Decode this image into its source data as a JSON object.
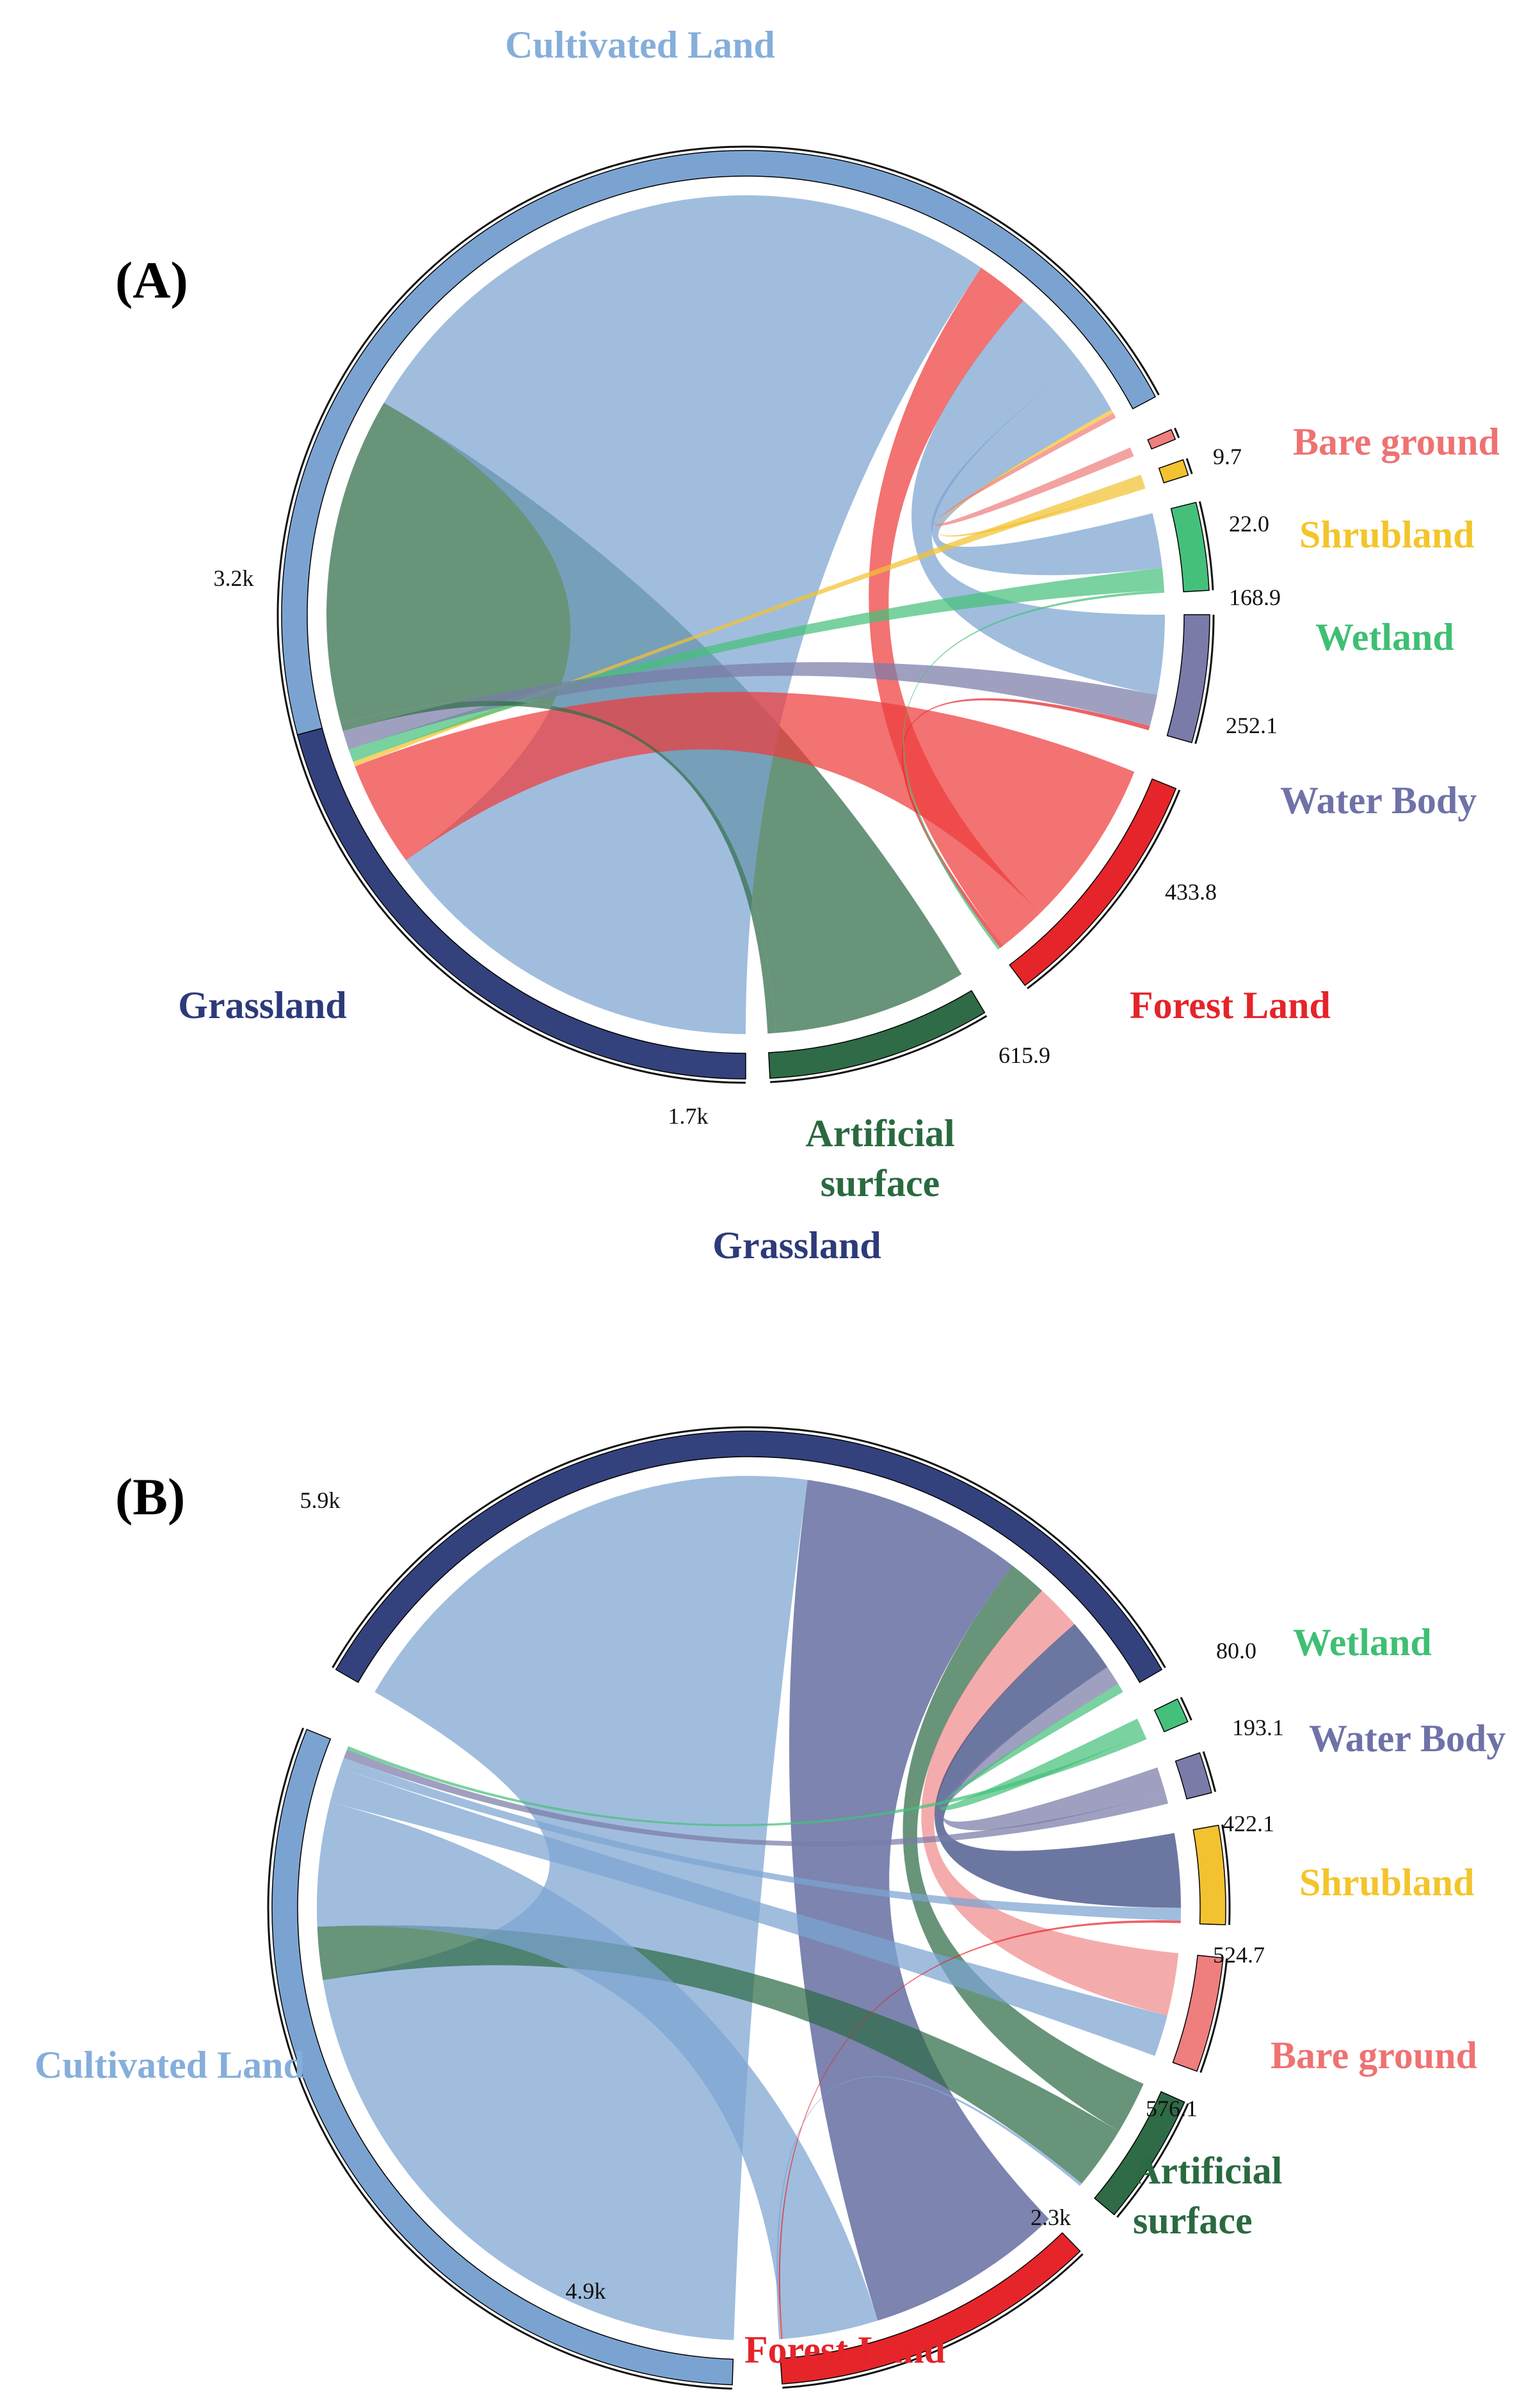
{
  "chart_data": [
    {
      "type": "chord",
      "panel_label": "(A)",
      "nodes": [
        {
          "id": "cultivated",
          "name": "Cultivated Land",
          "total": 3200,
          "total_label": "3.2k",
          "color": "#7ba3d1",
          "label_color": "#86aedb"
        },
        {
          "id": "bare",
          "name": "Bare ground",
          "total": 9.7,
          "total_label": "9.7",
          "color": "#ef7e7e",
          "label_color": "#ef7272"
        },
        {
          "id": "shrub",
          "name": "Shrubland",
          "total": 22.0,
          "total_label": "22.0",
          "color": "#f2c230",
          "label_color": "#f3c52b"
        },
        {
          "id": "wetland",
          "name": "Wetland",
          "total": 168.9,
          "total_label": "168.9",
          "color": "#45c07a",
          "label_color": "#3fbf73"
        },
        {
          "id": "water",
          "name": "Water Body",
          "total": 252.1,
          "total_label": "252.1",
          "color": "#7a7ba8",
          "label_color": "#6f72a8"
        },
        {
          "id": "forest",
          "name": "Forest Land",
          "total": 433.8,
          "total_label": "433.8",
          "color": "#e5252a",
          "label_color": "#e4242a"
        },
        {
          "id": "artificial",
          "name": "Artificial surface",
          "name_lines": [
            "Artificial",
            "surface"
          ],
          "total": 615.9,
          "total_label": "615.9",
          "color": "#2e6b46",
          "label_color": "#2a6a40"
        },
        {
          "id": "grassland",
          "name": "Grassland",
          "total": 1700,
          "total_label": "1.7k",
          "color": "#33427d",
          "label_color": "#2d3a7a"
        }
      ],
      "flows": [
        {
          "source": "cultivated",
          "target": "artificial",
          "value": 590,
          "color": "#2e6b46"
        },
        {
          "source": "cultivated",
          "target": "grassland",
          "value": 1220,
          "color": "#7ba3d1"
        },
        {
          "source": "grassland",
          "target": "forest",
          "value": 330,
          "color": "#ee3b3b"
        },
        {
          "source": "cultivated",
          "target": "forest",
          "value": 95,
          "color": "#ee3b3b"
        },
        {
          "source": "cultivated",
          "target": "water",
          "value": 150,
          "color": "#7ba3d1"
        },
        {
          "source": "cultivated",
          "target": "wetland",
          "value": 100,
          "color": "#7ba3d1"
        },
        {
          "source": "grassland",
          "target": "shrub",
          "value": 15,
          "color": "#f2c230"
        },
        {
          "source": "cultivated",
          "target": "shrub",
          "value": 7,
          "color": "#f2c230"
        },
        {
          "source": "cultivated",
          "target": "bare",
          "value": 9.7,
          "color": "#ef7e7e"
        },
        {
          "source": "grassland",
          "target": "wetland",
          "value": 40,
          "color": "#45c07a"
        },
        {
          "source": "grassland",
          "target": "water",
          "value": 60,
          "color": "#7a7ba8"
        },
        {
          "source": "grassland",
          "target": "artificial",
          "value": 25,
          "color": "#2e6b46"
        },
        {
          "source": "forest",
          "target": "water",
          "value": 8,
          "color": "#e5252a"
        },
        {
          "source": "wetland",
          "target": "forest",
          "value": 5,
          "color": "#45c07a"
        }
      ]
    },
    {
      "type": "chord",
      "panel_label": "(B)",
      "nodes": [
        {
          "id": "grassland",
          "name": "Grassland",
          "total": 5900,
          "total_label": "5.9k",
          "color": "#33427d",
          "label_color": "#2d3a7a"
        },
        {
          "id": "wetland",
          "name": "Wetland",
          "total": 80.0,
          "total_label": "80.0",
          "color": "#45c07a",
          "label_color": "#3fbf73"
        },
        {
          "id": "water",
          "name": "Water Body",
          "total": 193.1,
          "total_label": "193.1",
          "color": "#7a7ba8",
          "label_color": "#6f72a8"
        },
        {
          "id": "shrub",
          "name": "Shrubland",
          "total": 422.1,
          "total_label": "422.1",
          "color": "#f2c230",
          "label_color": "#f3c52b"
        },
        {
          "id": "bare",
          "name": "Bare ground",
          "total": 524.7,
          "total_label": "524.7",
          "color": "#ef7e7e",
          "label_color": "#ef7272"
        },
        {
          "id": "artificial",
          "name": "Artificial surface",
          "name_lines": [
            "Artificial",
            "surface"
          ],
          "total": 576.1,
          "total_label": "576.1",
          "color": "#2e6b46",
          "label_color": "#2a6a40"
        },
        {
          "id": "forest",
          "name": "Forest Land",
          "total": 2300,
          "total_label": "2.3k",
          "color": "#e5252a",
          "label_color": "#e4242a"
        },
        {
          "id": "cultivated",
          "name": "Cultivated Land",
          "total": 4900,
          "total_label": "4.9k",
          "color": "#7ba3d1",
          "label_color": "#86aedb"
        }
      ],
      "flows": [
        {
          "source": "grassland",
          "target": "cultivated",
          "value": 3300,
          "color": "#7ba3d1"
        },
        {
          "source": "grassland",
          "target": "forest",
          "value": 1450,
          "color": "#4a5590"
        },
        {
          "source": "grassland",
          "target": "artificial",
          "value": 250,
          "color": "#2e6b46"
        },
        {
          "source": "grassland",
          "target": "bare",
          "value": 300,
          "color": "#f08a8a"
        },
        {
          "source": "grassland",
          "target": "shrub",
          "value": 350,
          "color": "#33427d"
        },
        {
          "source": "grassland",
          "target": "water",
          "value": 130,
          "color": "#7a7ba8"
        },
        {
          "source": "grassland",
          "target": "wetland",
          "value": 60,
          "color": "#45c07a"
        },
        {
          "source": "cultivated",
          "target": "artificial",
          "value": 300,
          "color": "#2e6b46"
        },
        {
          "source": "cultivated",
          "target": "forest",
          "value": 700,
          "color": "#7ba3d1"
        },
        {
          "source": "cultivated",
          "target": "bare",
          "value": 200,
          "color": "#7ba3d1"
        },
        {
          "source": "cultivated",
          "target": "shrub",
          "value": 60,
          "color": "#7ba3d1"
        },
        {
          "source": "cultivated",
          "target": "water",
          "value": 50,
          "color": "#7a7ba8"
        },
        {
          "source": "cultivated",
          "target": "wetland",
          "value": 20,
          "color": "#45c07a"
        },
        {
          "source": "forest",
          "target": "shrub",
          "value": 12,
          "color": "#e5252a"
        },
        {
          "source": "forest",
          "target": "artificial",
          "value": 14,
          "color": "#7ba3d1"
        }
      ]
    }
  ]
}
